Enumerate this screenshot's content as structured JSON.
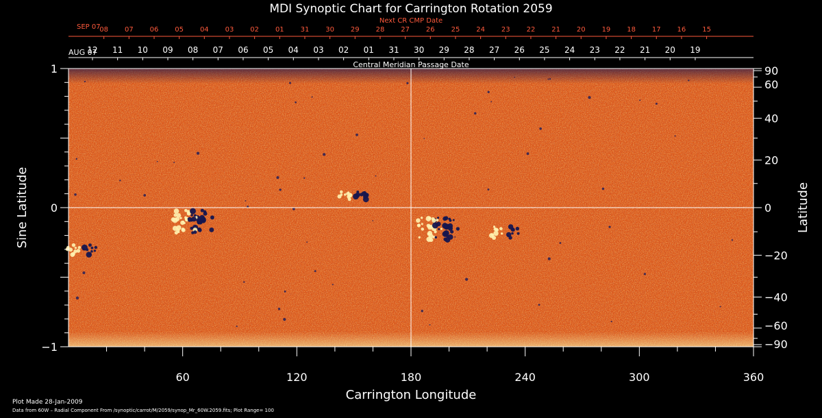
{
  "chart_data": {
    "type": "heatmap",
    "title": "MDI Synoptic Chart for Carrington Rotation 2059",
    "xlabel": "Carrington Longitude",
    "ylabel_left": "Sine Latitude",
    "ylabel_right": "Latitude",
    "top_label": "Central Meridian Passage Date",
    "next_label": "Next CR CMP Date",
    "x_range": [
      0,
      360
    ],
    "y_range_sine": [
      -1,
      1
    ],
    "x_ticks": [
      "60",
      "120",
      "180",
      "240",
      "300",
      "360"
    ],
    "x_tick_values": [
      60,
      120,
      180,
      240,
      300,
      360
    ],
    "y_left_ticks": [
      {
        "label": "1",
        "value": 1
      },
      {
        "label": "0",
        "value": 0
      },
      {
        "label": "−1",
        "value": -1
      }
    ],
    "y_right_ticks": [
      {
        "label": "90",
        "value": 90
      },
      {
        "label": "60",
        "value": 60
      },
      {
        "label": "40",
        "value": 40
      },
      {
        "label": "20",
        "value": 20
      },
      {
        "label": "0",
        "value": 0
      },
      {
        "label": "−20",
        "value": -20
      },
      {
        "label": "−40",
        "value": -40
      },
      {
        "label": "−60",
        "value": -60
      },
      {
        "label": "−90",
        "value": -90
      }
    ],
    "cmp_month_label": "AUG 07",
    "cmp_dates": [
      "12",
      "11",
      "10",
      "09",
      "08",
      "07",
      "06",
      "05",
      "04",
      "03",
      "02",
      "01",
      "31",
      "30",
      "29",
      "28",
      "27",
      "26",
      "25",
      "24",
      "23",
      "22",
      "21",
      "20",
      "19"
    ],
    "next_month_label": "SEP 07",
    "next_dates": [
      "08",
      "07",
      "06",
      "05",
      "04",
      "03",
      "02",
      "01",
      "31",
      "30",
      "29",
      "28",
      "27",
      "26",
      "25",
      "24",
      "23",
      "22",
      "21",
      "20",
      "19",
      "18",
      "17",
      "16",
      "15"
    ],
    "crosshair": {
      "longitude": 180,
      "sine_latitude": 0
    },
    "colormap": "red-orange-yellow with dark blue/white magnetic features",
    "plot_range": 100,
    "active_regions": [
      {
        "longitude": 66,
        "sine_latitude": -0.1,
        "strength": "strong"
      },
      {
        "longitude": 195,
        "sine_latitude": -0.15,
        "strength": "strong"
      },
      {
        "longitude": 230,
        "sine_latitude": -0.18,
        "strength": "weak"
      },
      {
        "longitude": 150,
        "sine_latitude": 0.1,
        "strength": "weak"
      },
      {
        "longitude": 8,
        "sine_latitude": -0.3,
        "strength": "weak"
      }
    ]
  },
  "footer": {
    "plot_made": "Plot Made 28-Jan-2009",
    "data_source": "Data from 60W – Radial Component From /synoptic/carrot/M/2059/synop_Mr_60W.2059.fits; Plot Range=  100"
  },
  "colors": {
    "background": "#000000",
    "foreground": "#ffffff",
    "next_dates_color": "#ff5a3c",
    "map_base": "#d9541a",
    "positive_polarity": "#ffe27a",
    "negative_polarity": "#1a1a5a"
  }
}
